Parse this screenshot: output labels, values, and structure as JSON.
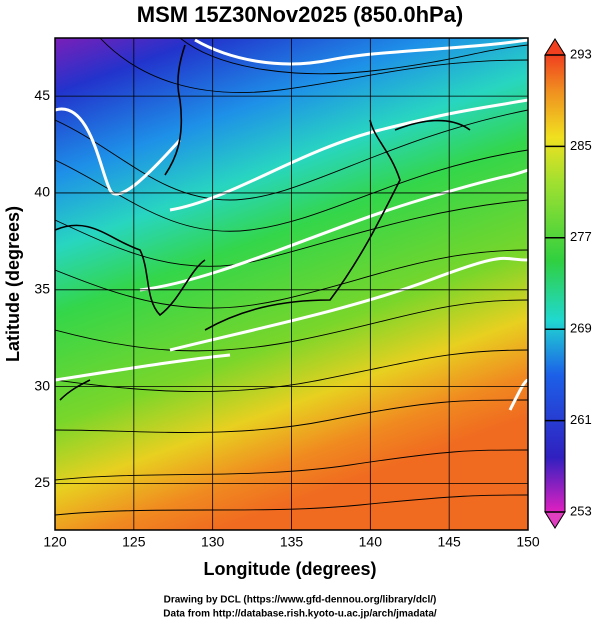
{
  "title": "MSM 15Z30Nov2025 (850.0hPa)",
  "x_axis": {
    "label": "Longitude (degrees)",
    "xlim": [
      120,
      150
    ],
    "ticks": [
      120,
      125,
      130,
      135,
      140,
      145,
      150
    ]
  },
  "y_axis": {
    "label": "Latitude  (degrees)",
    "ylim": [
      22.6,
      48
    ],
    "ticks": [
      25,
      30,
      35,
      40,
      45
    ]
  },
  "colorbar": {
    "lim": [
      253,
      293
    ],
    "ticks": [
      253,
      261,
      269,
      277,
      285,
      293
    ]
  },
  "footer": [
    "Drawing by DCL (https://www.gfd-dennou.org/library/dcl/)",
    "Data from http://database.rish.kyoto-u.ac.jp/arch/jmadata/"
  ]
}
